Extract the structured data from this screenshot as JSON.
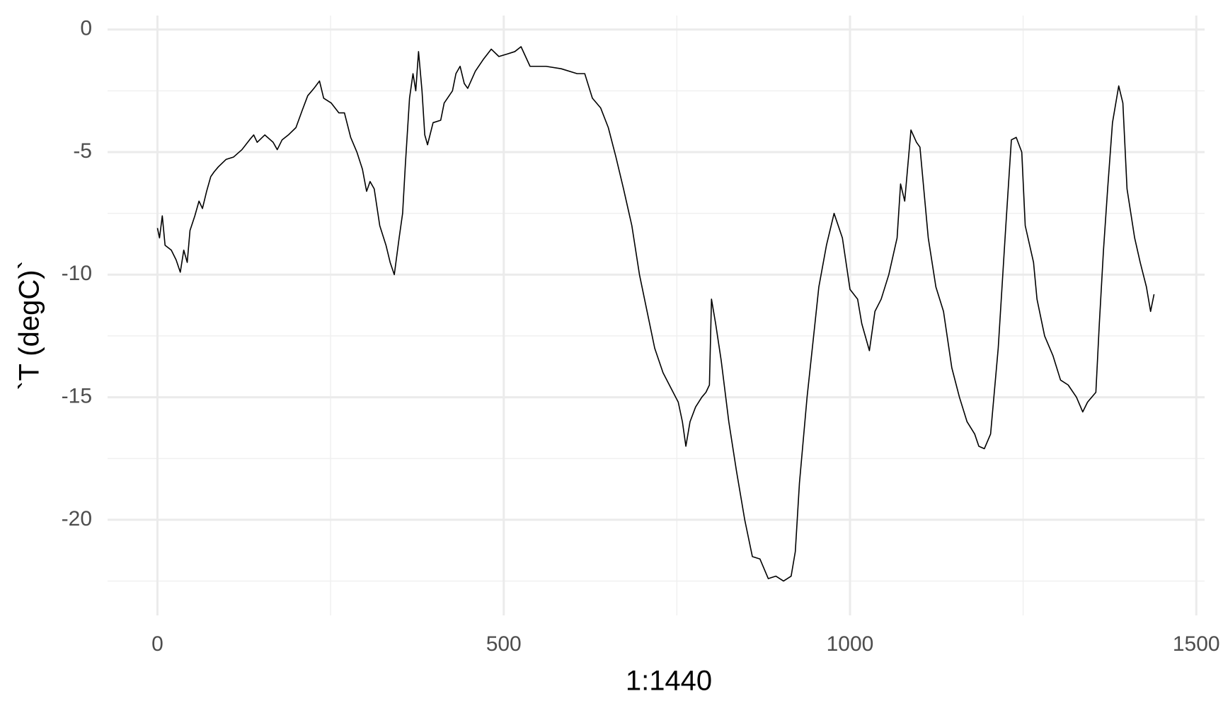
{
  "chart_data": {
    "type": "line",
    "x_label": "1:1440",
    "y_label": "`T (degC)`",
    "x": [
      0,
      3,
      7,
      11,
      20,
      27,
      33,
      38,
      43,
      47,
      54,
      60,
      65,
      71,
      77,
      82,
      88,
      99,
      110,
      122,
      133,
      139,
      144,
      155,
      167,
      173,
      180,
      189,
      200,
      209,
      217,
      226,
      234,
      240,
      251,
      262,
      270,
      279,
      288,
      296,
      302,
      307,
      313,
      321,
      330,
      336,
      342,
      349,
      354,
      358,
      364,
      369,
      373,
      377,
      382,
      386,
      390,
      398,
      409,
      414,
      426,
      431,
      437,
      443,
      448,
      459,
      471,
      482,
      493,
      505,
      516,
      525,
      538,
      561,
      583,
      606,
      617,
      628,
      640,
      651,
      662,
      673,
      685,
      696,
      707,
      718,
      730,
      741,
      752,
      758,
      763,
      769,
      777,
      786,
      792,
      797,
      800,
      806,
      814,
      825,
      836,
      848,
      859,
      870,
      882,
      893,
      904,
      915,
      921,
      927,
      938,
      949,
      955,
      966,
      977,
      989,
      1000,
      1011,
      1017,
      1028,
      1036,
      1045,
      1056,
      1068,
      1073,
      1079,
      1088,
      1096,
      1101,
      1113,
      1124,
      1135,
      1147,
      1158,
      1169,
      1180,
      1186,
      1194,
      1203,
      1214,
      1225,
      1233,
      1240,
      1248,
      1253,
      1265,
      1270,
      1281,
      1293,
      1304,
      1315,
      1327,
      1336,
      1343,
      1355,
      1360,
      1366,
      1372,
      1379,
      1388,
      1394,
      1400,
      1411,
      1419,
      1428,
      1434,
      1439
    ],
    "values": [
      -8.1,
      -8.5,
      -7.6,
      -8.8,
      -9.0,
      -9.4,
      -9.9,
      -9.0,
      -9.5,
      -8.2,
      -7.6,
      -7.0,
      -7.3,
      -6.6,
      -6.0,
      -5.8,
      -5.6,
      -5.3,
      -5.2,
      -4.9,
      -4.5,
      -4.3,
      -4.6,
      -4.3,
      -4.6,
      -4.9,
      -4.5,
      -4.3,
      -4.0,
      -3.3,
      -2.7,
      -2.4,
      -2.1,
      -2.8,
      -3.0,
      -3.4,
      -3.4,
      -4.4,
      -5.0,
      -5.7,
      -6.6,
      -6.2,
      -6.5,
      -8.0,
      -8.8,
      -9.5,
      -10.0,
      -8.5,
      -7.5,
      -5.5,
      -2.8,
      -1.8,
      -2.5,
      -0.9,
      -2.5,
      -4.3,
      -4.7,
      -3.8,
      -3.7,
      -3.0,
      -2.5,
      -1.8,
      -1.5,
      -2.2,
      -2.4,
      -1.7,
      -1.2,
      -0.8,
      -1.1,
      -1.0,
      -0.9,
      -0.7,
      -1.5,
      -1.5,
      -1.6,
      -1.8,
      -1.8,
      -2.8,
      -3.2,
      -4.0,
      -5.2,
      -6.5,
      -8.0,
      -10.0,
      -11.5,
      -13.0,
      -14.0,
      -14.6,
      -15.2,
      -16.0,
      -17.0,
      -16.0,
      -15.4,
      -15.0,
      -14.8,
      -14.5,
      -11.0,
      -12.0,
      -13.5,
      -16.0,
      -18.0,
      -20.0,
      -21.5,
      -21.6,
      -22.4,
      -22.3,
      -22.5,
      -22.3,
      -21.3,
      -18.5,
      -15.0,
      -12.1,
      -10.5,
      -8.8,
      -7.5,
      -8.5,
      -10.6,
      -11.0,
      -12.0,
      -13.1,
      -11.5,
      -11.0,
      -10.0,
      -8.5,
      -6.3,
      -7.0,
      -4.1,
      -4.6,
      -4.8,
      -8.5,
      -10.5,
      -11.5,
      -13.8,
      -15.0,
      -16.0,
      -16.5,
      -17.0,
      -17.1,
      -16.5,
      -13.0,
      -8.0,
      -4.5,
      -4.4,
      -5.0,
      -8.0,
      -9.5,
      -11.0,
      -12.5,
      -13.3,
      -14.3,
      -14.5,
      -15.0,
      -15.6,
      -15.2,
      -14.8,
      -12.0,
      -9.0,
      -6.5,
      -3.8,
      -2.3,
      -3.0,
      -6.5,
      -8.5,
      -9.5,
      -10.5,
      -11.5,
      -10.8
    ],
    "color": "#000000",
    "xlim": [
      -72,
      1512
    ],
    "ylim": [
      -23.9,
      0.57
    ],
    "xticks": [
      0,
      500,
      1000,
      1500
    ],
    "yticks": [
      0,
      -5,
      -10,
      -15,
      -20
    ],
    "x_minor_ticks": [
      250,
      750,
      1250
    ],
    "y_minor_ticks": [
      -2.5,
      -7.5,
      -12.5,
      -17.5,
      -22.5
    ],
    "grid": true
  }
}
